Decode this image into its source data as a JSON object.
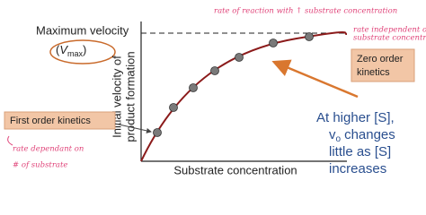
{
  "annotations": {
    "top_note": "rate of reaction with ↑ substrate concentration",
    "right_note": [
      "rate independent of ↑",
      "substrate concentration"
    ],
    "left_note": [
      "rate dependant on",
      "# of substrate"
    ]
  },
  "vmax": {
    "label": "Maximum velocity",
    "open": "(",
    "symbol": "V",
    "subscript": "max",
    "close": ")"
  },
  "axes": {
    "y_label": [
      "Initial velocity of",
      "product formation"
    ],
    "x_label": "Substrate concentration"
  },
  "boxes": {
    "zero_order": [
      "Zero order",
      "kinetics"
    ],
    "first_order": "First order kinetics"
  },
  "note": {
    "line1": "At higher [S],",
    "symbol": "v",
    "subscript": "o",
    "line2_rest": "changes",
    "line3": "little as [S]",
    "line4": "increases"
  }
}
